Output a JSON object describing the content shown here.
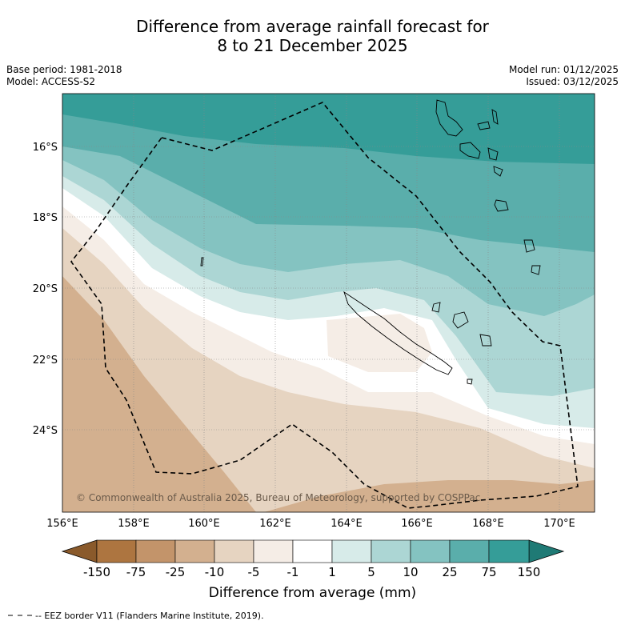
{
  "title_line1": "Difference from average rainfall forecast for",
  "title_line2": "8 to 21 December 2025",
  "meta_left": {
    "base_period": "Base period: 1981-2018",
    "model": "Model: ACCESS-S2"
  },
  "meta_right": {
    "model_run": "Model run: 01/12/2025",
    "issued": "Issued: 03/12/2025"
  },
  "map": {
    "lon_labels": [
      "156°E",
      "158°E",
      "160°E",
      "162°E",
      "164°E",
      "166°E",
      "168°E",
      "170°E"
    ],
    "lat_labels": [
      "16°S",
      "18°S",
      "20°S",
      "22°S",
      "24°S"
    ],
    "copyright": "© Commonwealth of Australia 2025, Bureau of Meteorology, supported by COSPPac"
  },
  "colorbar": {
    "ticks": [
      "-150",
      "-75",
      "-25",
      "-10",
      "-5",
      "-1",
      "1",
      "5",
      "10",
      "25",
      "75",
      "150"
    ],
    "colors": [
      "#ad7540",
      "#c3946a",
      "#d3b08f",
      "#e6d4c1",
      "#f5ede6",
      "#ffffff",
      "#d7ebe9",
      "#acd6d4",
      "#84c3c1",
      "#5aaeab",
      "#359d98"
    ],
    "low_extend": "#8a5a2b",
    "high_extend": "#1f7a75",
    "label": "Difference from average (mm)"
  },
  "legend": {
    "eez_text": "-- EEZ border V11 (Flanders Marine Institute, 2019)."
  }
}
